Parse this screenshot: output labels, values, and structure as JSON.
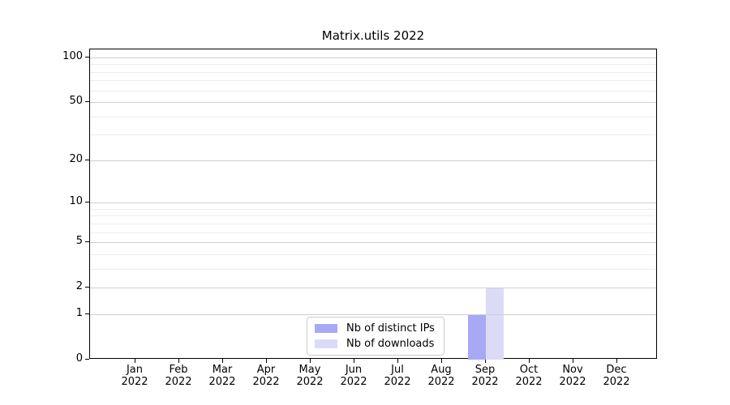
{
  "title": "Matrix.utils 2022",
  "chart_data": {
    "type": "bar",
    "title": "Matrix.utils 2022",
    "months": [
      "Jan",
      "Feb",
      "Mar",
      "Apr",
      "May",
      "Jun",
      "Jul",
      "Aug",
      "Sep",
      "Oct",
      "Nov",
      "Dec"
    ],
    "year_label": "2022",
    "series": [
      {
        "name": "Nb of distinct IPs",
        "color": "#a8a8f6",
        "values": [
          0,
          0,
          0,
          0,
          0,
          0,
          0,
          0,
          1,
          0,
          0,
          0
        ]
      },
      {
        "name": "Nb of downloads",
        "color": "#dbdbf8",
        "values": [
          0,
          0,
          0,
          0,
          0,
          0,
          0,
          0,
          2,
          0,
          0,
          0
        ]
      }
    ],
    "xlabel": "",
    "ylabel": "",
    "y_scale": "log1p",
    "y_ticks": [
      0,
      1,
      2,
      5,
      10,
      20,
      50,
      100
    ],
    "y_minor_ticks": [
      3,
      4,
      6,
      7,
      8,
      9,
      30,
      40,
      60,
      70,
      80,
      90
    ],
    "ylim": [
      0,
      113
    ],
    "grid": "horizontal",
    "legend_position": "lower center"
  },
  "colors": {
    "grid_major": "#cfcfcf",
    "grid_minor": "#ececec",
    "axis": "#000000",
    "legend_border": "#cccccc",
    "background": "#ffffff"
  }
}
